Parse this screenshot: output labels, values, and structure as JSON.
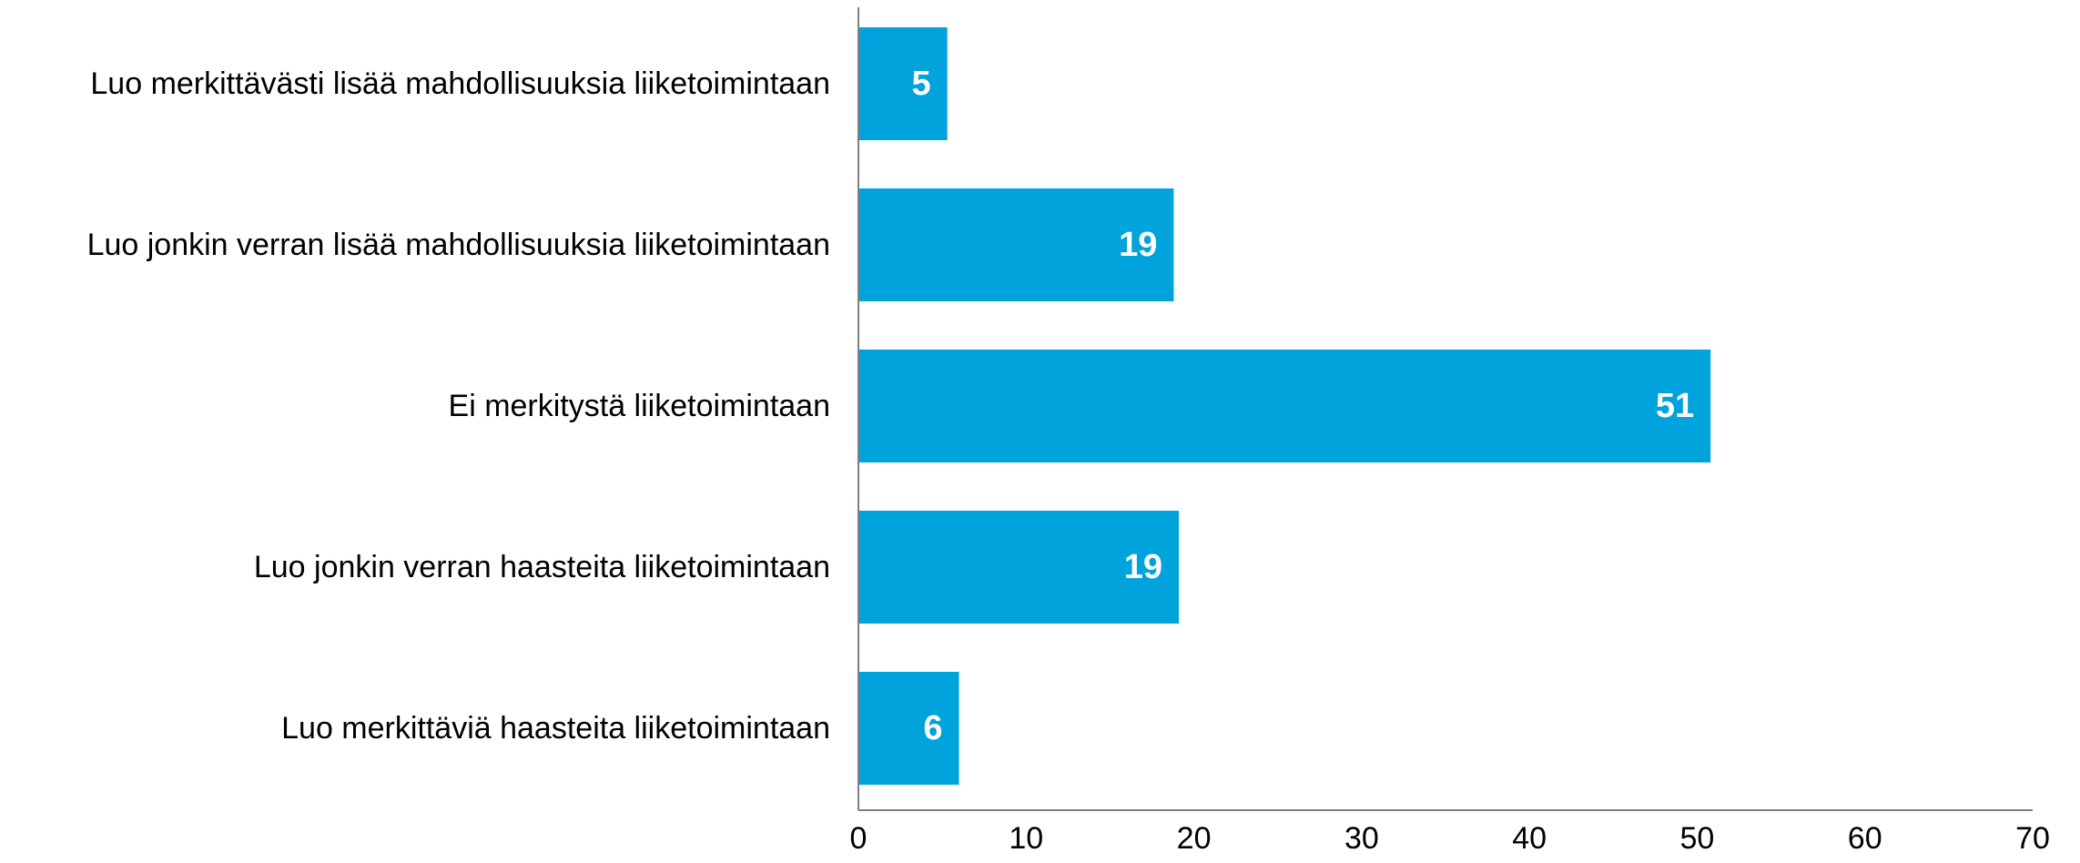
{
  "chart_data": {
    "type": "bar",
    "orientation": "horizontal",
    "categories": [
      "Luo merkittävästi lisää mahdollisuuksia liiketoimintaan",
      "Luo jonkin verran lisää mahdollisuuksia liiketoimintaan",
      "Ei merkitystä liiketoimintaan",
      "Luo jonkin verran haasteita liiketoimintaan",
      "Luo merkittäviä haasteita liiketoimintaan"
    ],
    "values": [
      5.3,
      18.8,
      50.8,
      19.1,
      6.0
    ],
    "value_labels": [
      "5",
      "19",
      "51",
      "19",
      "6"
    ],
    "xlim": [
      0,
      70
    ],
    "x_ticks": [
      "0",
      "10",
      "20",
      "30",
      "40",
      "50",
      "60",
      "70"
    ],
    "grid": false,
    "legend": "none",
    "bar_color": "#00a3dc",
    "axis_color": "#7f7f7f"
  }
}
